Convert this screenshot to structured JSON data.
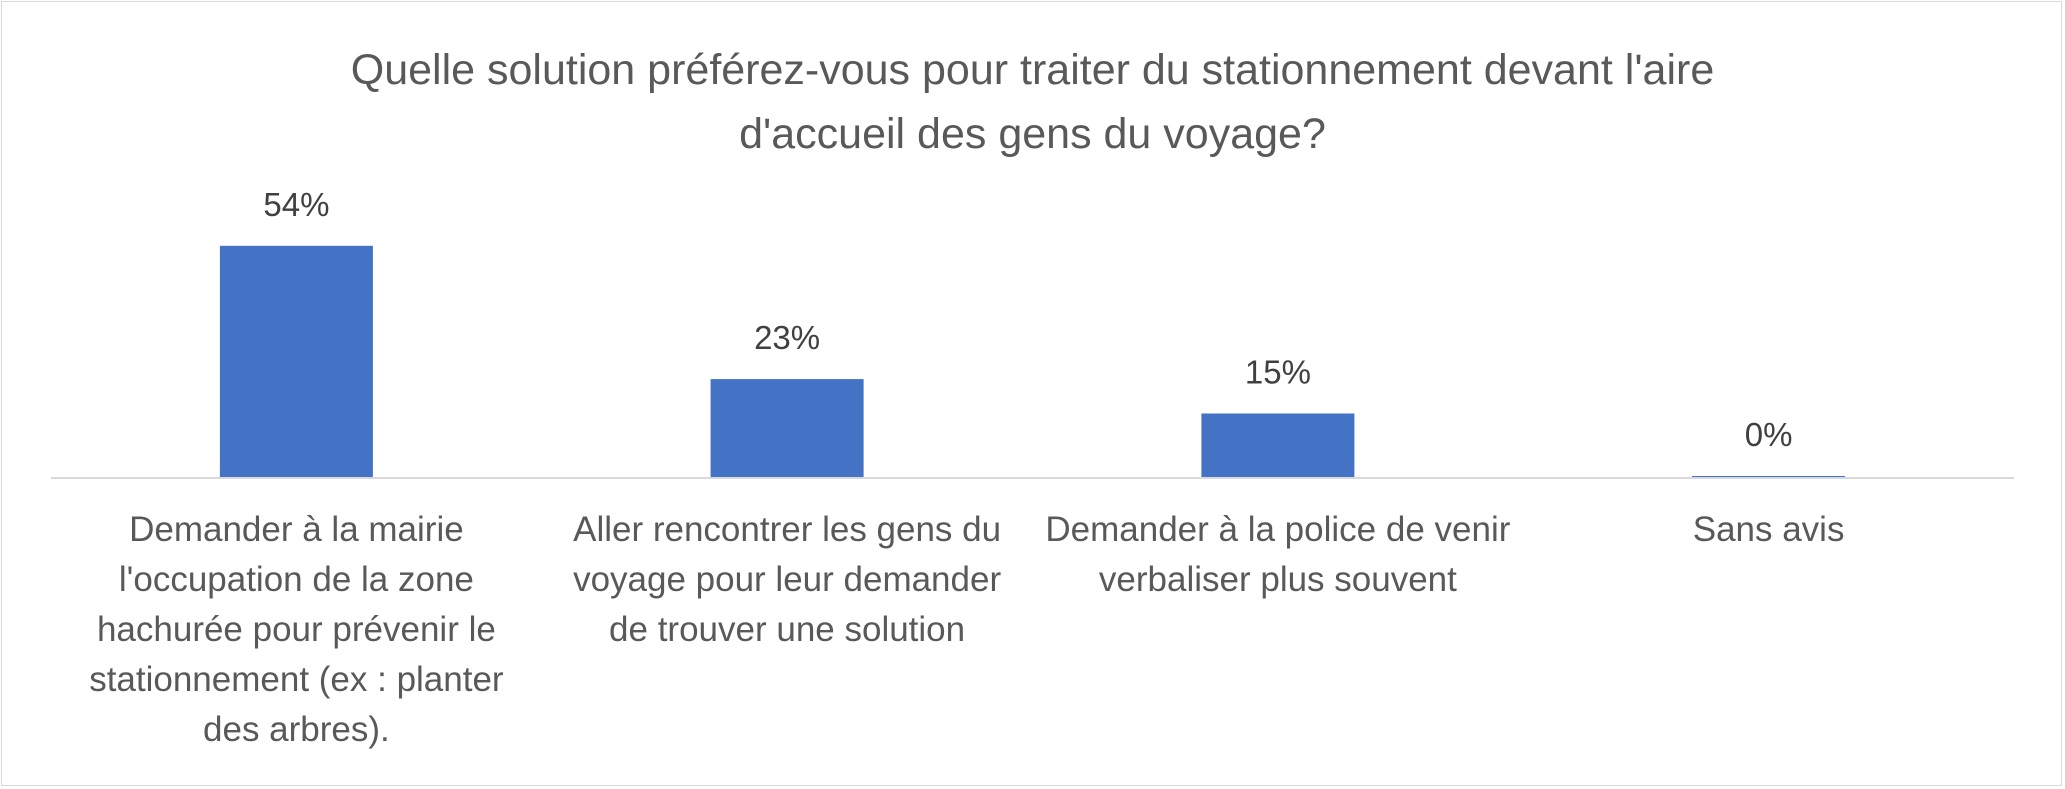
{
  "colors": {
    "bar": "#4472c4",
    "axis": "#d9d9d9",
    "text": "#595959",
    "data_label": "#404040"
  },
  "chart_data": {
    "type": "bar",
    "title": "Quelle solution préférez-vous pour traiter du stationnement devant l'aire\nd'accueil des gens du voyage?",
    "categories": [
      "Demander à la mairie l'occupation de la zone hachurée pour prévenir le stationnement (ex : planter des arbres).",
      "Aller rencontrer les gens du voyage pour leur demander de trouver une solution",
      "Demander à la police de venir verbaliser plus souvent",
      "Sans avis"
    ],
    "values": [
      54,
      23,
      15,
      0
    ],
    "data_labels": [
      "54%",
      "23%",
      "15%",
      "0%"
    ],
    "ylim": [
      0,
      60
    ],
    "grid": false,
    "legend": "none",
    "xlabel": "",
    "ylabel": ""
  }
}
